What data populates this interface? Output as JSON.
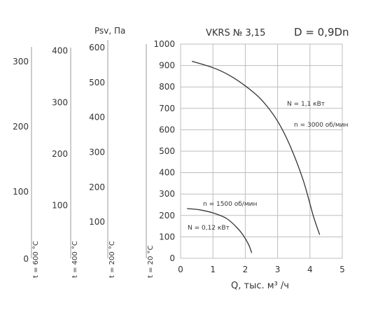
{
  "chart_data": {
    "type": "line",
    "title": "VKRS № 3,15",
    "subtitle": "D = 0,9Dn",
    "ylabel": "Psv, Па",
    "xlabel": "Q, тыс. м³ /ч",
    "xlim": [
      0,
      5
    ],
    "x_ticks": [
      "0",
      "1",
      "2",
      "3",
      "4",
      "5"
    ],
    "ylim": [
      0,
      1000
    ],
    "y_ticks": [
      "0",
      "100",
      "200",
      "300",
      "400",
      "500",
      "600",
      "700",
      "800",
      "900",
      "1000"
    ],
    "grid": true,
    "temperature_axes": [
      {
        "label": "t = 20 °C",
        "ticks": [
          0,
          100,
          200,
          300,
          400,
          500,
          600,
          700,
          800,
          900,
          1000
        ]
      },
      {
        "label": "t = 200 °C",
        "ticks": [
          100,
          200,
          300,
          400,
          500,
          600
        ]
      },
      {
        "label": "t = 400 °C",
        "ticks": [
          100,
          200,
          300,
          400
        ]
      },
      {
        "label": "t = 600 °C",
        "ticks": [
          0,
          100,
          200,
          300
        ]
      }
    ],
    "series": [
      {
        "power": "N = 1,1 кВт",
        "speed": "n = 3000 об/мин",
        "x": [
          0.35,
          1.0,
          1.5,
          2.0,
          2.5,
          3.0,
          3.4,
          3.8,
          4.1,
          4.3
        ],
        "y": [
          920,
          890,
          855,
          805,
          740,
          640,
          520,
          360,
          200,
          110
        ]
      },
      {
        "power": "N = 0,12 кВт",
        "speed": "n = 1500 об/мин",
        "x": [
          0.2,
          0.6,
          1.0,
          1.4,
          1.7,
          1.9,
          2.1,
          2.2
        ],
        "y": [
          232,
          226,
          212,
          188,
          150,
          115,
          65,
          25
        ]
      }
    ]
  }
}
